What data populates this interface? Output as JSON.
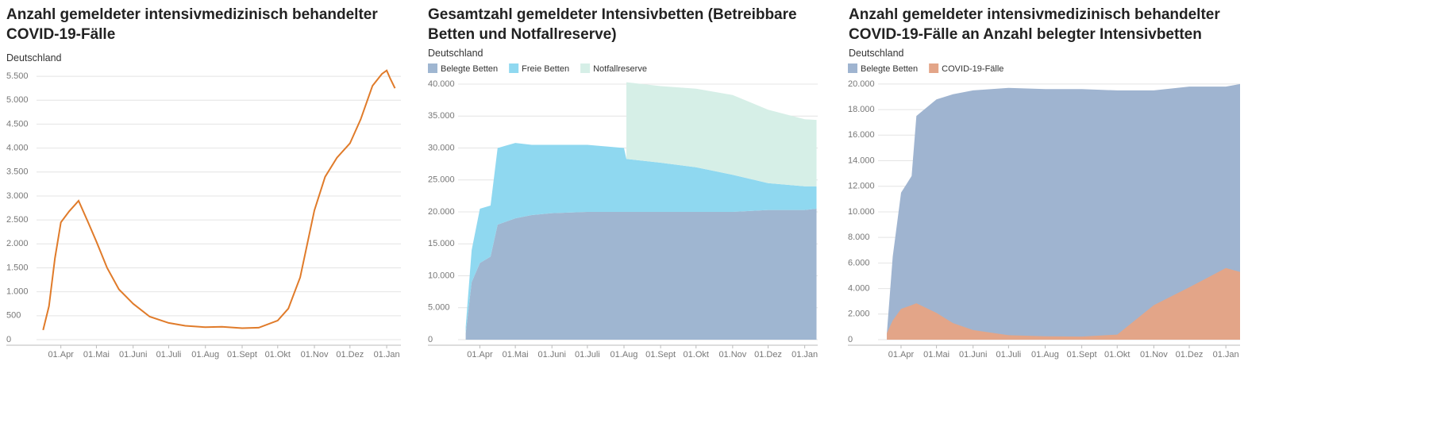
{
  "chart_data": [
    {
      "type": "line",
      "title": "Anzahl gemeldeter intensivmedizinisch behandelter COVID-19-Fälle",
      "subtitle": "Deutschland",
      "x": [
        "03-17",
        "03-22",
        "03-27",
        "04-01",
        "04-08",
        "04-16",
        "04-24",
        "05-01",
        "05-10",
        "05-20",
        "06-01",
        "06-15",
        "07-01",
        "07-15",
        "08-01",
        "08-15",
        "09-01",
        "09-15",
        "10-01",
        "10-10",
        "10-20",
        "11-01",
        "11-10",
        "11-20",
        "12-01",
        "12-10",
        "12-20",
        "12-28",
        "01-01",
        "01-04",
        "01-08"
      ],
      "values": [
        200,
        700,
        1700,
        2450,
        2680,
        2900,
        2450,
        2050,
        1500,
        1050,
        750,
        480,
        350,
        290,
        260,
        270,
        240,
        250,
        400,
        650,
        1300,
        2700,
        3400,
        3800,
        4100,
        4600,
        5300,
        5550,
        5620,
        5450,
        5250
      ],
      "color": "#e07b2a",
      "xlim": [
        "02-15",
        "01-13"
      ],
      "xticks": [
        {
          "value": "04-01",
          "label": "01.Apr"
        },
        {
          "value": "05-01",
          "label": "01.Mai"
        },
        {
          "value": "06-01",
          "label": "01.Juni"
        },
        {
          "value": "07-01",
          "label": "01.Juli"
        },
        {
          "value": "08-01",
          "label": "01.Aug"
        },
        {
          "value": "09-01",
          "label": "01.Sept"
        },
        {
          "value": "10-01",
          "label": "01.Okt"
        },
        {
          "value": "11-01",
          "label": "01.Nov"
        },
        {
          "value": "12-01",
          "label": "01.Dez"
        },
        {
          "value": "01-01",
          "label": "01.Jan"
        }
      ],
      "ylim": [
        0,
        5700
      ],
      "yticks": [
        0,
        500,
        {
          "value": 1000,
          "label": "1.000"
        },
        {
          "value": 1500,
          "label": "1.500"
        },
        {
          "value": 2000,
          "label": "2.000"
        },
        {
          "value": 2500,
          "label": "2.500"
        },
        {
          "value": 3000,
          "label": "3.000"
        },
        {
          "value": 3500,
          "label": "3.500"
        },
        {
          "value": 4000,
          "label": "4.000"
        },
        {
          "value": 4500,
          "label": "4.500"
        },
        {
          "value": 5000,
          "label": "5.000"
        },
        {
          "value": 5500,
          "label": "5.500"
        }
      ],
      "grid": true
    },
    {
      "type": "area",
      "stacked": true,
      "title": "Gesamtzahl gemeldeter Intensivbetten (Betreibbare Betten und Notfallreserve)",
      "subtitle": "Deutschland",
      "legend": "top-left",
      "x": [
        "03-20",
        "03-25",
        "04-01",
        "04-10",
        "04-16",
        "05-01",
        "05-15",
        "06-01",
        "07-01",
        "08-01",
        "08-03",
        "09-01",
        "10-01",
        "11-01",
        "12-01",
        "01-01",
        "01-11"
      ],
      "series": [
        {
          "name": "Belegte Betten",
          "color": "#9fb6d1",
          "values": [
            1000,
            9000,
            12000,
            13000,
            18000,
            19000,
            19500,
            19800,
            20000,
            20000,
            20000,
            20000,
            20000,
            20000,
            20300,
            20300,
            20500
          ]
        },
        {
          "name": "Freie Betten",
          "color": "#8fd8f0",
          "values": [
            1000,
            5000,
            8500,
            8000,
            12000,
            11800,
            11000,
            10700,
            10500,
            10000,
            8300,
            7700,
            7000,
            5800,
            4200,
            3700,
            3500
          ]
        },
        {
          "name": "Notfallreserve",
          "color": "#d6efe7",
          "values": [
            null,
            null,
            null,
            null,
            null,
            null,
            null,
            null,
            null,
            null,
            12000,
            12000,
            12300,
            12500,
            11500,
            10500,
            10400
          ]
        }
      ],
      "xlim": [
        "02-17",
        "01-12"
      ],
      "xticks": [
        {
          "value": "04-01",
          "label": "01.Apr"
        },
        {
          "value": "05-01",
          "label": "01.Mai"
        },
        {
          "value": "06-01",
          "label": "01.Juni"
        },
        {
          "value": "07-01",
          "label": "01.Juli"
        },
        {
          "value": "08-01",
          "label": "01.Aug"
        },
        {
          "value": "09-01",
          "label": "01.Sept"
        },
        {
          "value": "10-01",
          "label": "01.Okt"
        },
        {
          "value": "11-01",
          "label": "01.Nov"
        },
        {
          "value": "12-01",
          "label": "01.Dez"
        },
        {
          "value": "01-01",
          "label": "01.Jan"
        }
      ],
      "ylim": [
        0,
        41000
      ],
      "yticks": [
        0,
        {
          "value": 5000,
          "label": "5.000"
        },
        {
          "value": 10000,
          "label": "10.000"
        },
        {
          "value": 15000,
          "label": "15.000"
        },
        {
          "value": 20000,
          "label": "20.000"
        },
        {
          "value": 25000,
          "label": "25.000"
        },
        {
          "value": 30000,
          "label": "30.000"
        },
        {
          "value": 35000,
          "label": "35.000"
        },
        {
          "value": 40000,
          "label": "40.000"
        }
      ],
      "grid": true
    },
    {
      "type": "area",
      "stacked": false,
      "title": "Anzahl gemeldeter intensivmedizinisch behandelter COVID-19-Fälle an Anzahl belegter Intensivbetten",
      "subtitle": "Deutschland",
      "legend": "top-left",
      "x": [
        "03-20",
        "03-25",
        "04-01",
        "04-10",
        "04-14",
        "05-01",
        "05-15",
        "06-01",
        "07-01",
        "08-01",
        "09-01",
        "10-01",
        "11-01",
        "12-01",
        "01-01",
        "01-13"
      ],
      "series": [
        {
          "name": "Belegte Betten",
          "color": "#9fb4d0",
          "values": [
            500,
            6500,
            11500,
            12800,
            17500,
            18800,
            19200,
            19500,
            19700,
            19600,
            19600,
            19500,
            19500,
            19800,
            19800,
            20000
          ]
        },
        {
          "name": "COVID-19-Fälle",
          "color": "#e3a588",
          "values": [
            500,
            1500,
            2400,
            2700,
            2850,
            2100,
            1300,
            750,
            350,
            260,
            240,
            400,
            2700,
            4100,
            5600,
            5300
          ]
        }
      ],
      "xlim": [
        "02-16",
        "01-13"
      ],
      "xticks": [
        {
          "value": "04-01",
          "label": "01.Apr"
        },
        {
          "value": "05-01",
          "label": "01.Mai"
        },
        {
          "value": "06-01",
          "label": "01.Juni"
        },
        {
          "value": "07-01",
          "label": "01.Juli"
        },
        {
          "value": "08-01",
          "label": "01.Aug"
        },
        {
          "value": "09-01",
          "label": "01.Sept"
        },
        {
          "value": "10-01",
          "label": "01.Okt"
        },
        {
          "value": "11-01",
          "label": "01.Nov"
        },
        {
          "value": "12-01",
          "label": "01.Dez"
        },
        {
          "value": "01-01",
          "label": "01.Jan"
        }
      ],
      "ylim": [
        0,
        20800
      ],
      "yticks": [
        0,
        {
          "value": 2000,
          "label": "2.000"
        },
        {
          "value": 4000,
          "label": "4.000"
        },
        {
          "value": 6000,
          "label": "6.000"
        },
        {
          "value": 8000,
          "label": "8.000"
        },
        {
          "value": 10000,
          "label": "10.000"
        },
        {
          "value": 12000,
          "label": "12.000"
        },
        {
          "value": 14000,
          "label": "14.000"
        },
        {
          "value": 16000,
          "label": "16.000"
        },
        {
          "value": 18000,
          "label": "18.000"
        },
        {
          "value": 20000,
          "label": "20.000"
        }
      ],
      "grid": true
    }
  ]
}
